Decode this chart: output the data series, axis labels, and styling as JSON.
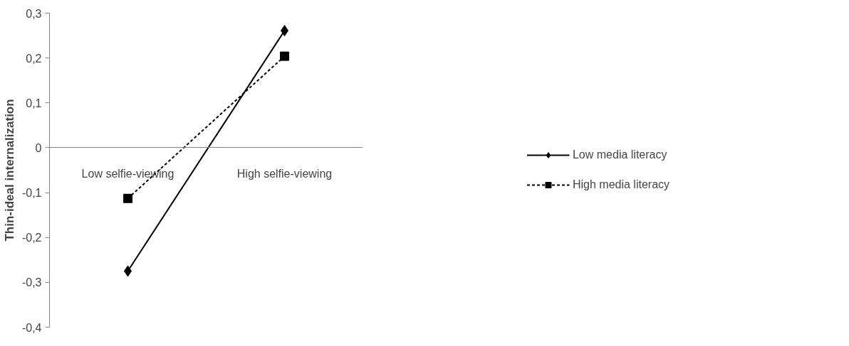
{
  "chart_data": {
    "type": "line",
    "ylabel": "Thin-ideal internalization",
    "categories": [
      "Low selfie-viewing",
      "High selfie-viewing"
    ],
    "series": [
      {
        "name": "Low media literacy",
        "color": "#000000",
        "values": [
          -0.275,
          0.261
        ],
        "marker": "diamond",
        "line_style": "solid"
      },
      {
        "name": "High media literacy",
        "color": "#000000",
        "values": [
          -0.113,
          0.204
        ],
        "marker": "square",
        "line_style": "dashed"
      }
    ],
    "ylim": [
      -0.4,
      0.3
    ],
    "yticks": [
      {
        "value": -0.4,
        "label": "-0,4"
      },
      {
        "value": -0.3,
        "label": "-0,3"
      },
      {
        "value": -0.2,
        "label": "-0,2"
      },
      {
        "value": -0.1,
        "label": "-0,1"
      },
      0,
      {
        "value": 0.1,
        "label": "0,1"
      },
      {
        "value": 0.2,
        "label": "0,2"
      },
      {
        "value": 0.3,
        "label": "0,3"
      }
    ],
    "grid": false,
    "legend": "right"
  }
}
